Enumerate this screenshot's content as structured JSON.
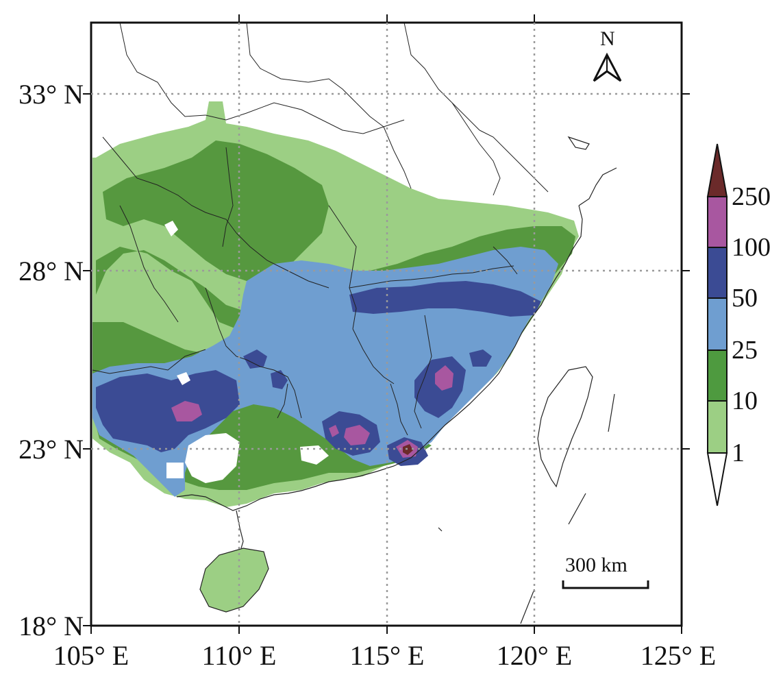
{
  "latitude_labels": [
    "33° N",
    "28° N",
    "23° N",
    "18° N"
  ],
  "longitude_labels": [
    "105° E",
    "110° E",
    "115° E",
    "120° E",
    "125° E"
  ],
  "north_arrow": {
    "letter": "N",
    "icon": "north-arrow-icon"
  },
  "scale_bar": {
    "label": "300 km"
  },
  "colorbar": {
    "labels": [
      "250",
      "100",
      "50",
      "25",
      "10",
      "1"
    ],
    "colors": [
      "#6b2a2a",
      "#a857a0",
      "#3b4b94",
      "#6f9ed0",
      "#4e9a3f",
      "#9ccf84",
      "#ffffff"
    ]
  },
  "colors": {
    "light_green": "#9ccf84",
    "green": "#56983f",
    "light_blue": "#6f9ed0",
    "dark_blue": "#3b4b94",
    "magenta": "#a857a0",
    "dark_red": "#6b2a2a",
    "grid": "#9a9a9a",
    "boundary": "#222222"
  }
}
